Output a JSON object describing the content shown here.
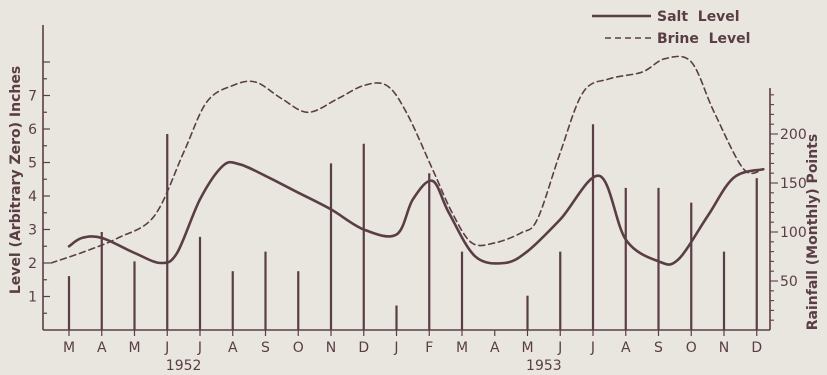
{
  "chart_data": {
    "type": "line",
    "legend": {
      "placement": "top-right",
      "entries": [
        {
          "label": "Salt  Level",
          "style": "solid"
        },
        {
          "label": "Brine  Level",
          "style": "dashed"
        }
      ]
    },
    "ylabel": "Level (Arbitrary Zero) Inches",
    "y2label": "Rainfall (Monthly) Points",
    "ylim": [
      0,
      8
    ],
    "y2lim": [
      0,
      240
    ],
    "yticks": [
      "1",
      "2",
      "3",
      "4",
      "5",
      "6",
      "7"
    ],
    "y2ticks": [
      "50",
      "100",
      "150",
      "200"
    ],
    "categories": [
      "M",
      "A",
      "M",
      "J",
      "J",
      "A",
      "S",
      "O",
      "N",
      "D",
      "J",
      "F",
      "M",
      "A",
      "M",
      "J",
      "J",
      "A",
      "S",
      "O",
      "N",
      "D"
    ],
    "year_labels": [
      {
        "label": "1952",
        "index": 3.5
      },
      {
        "label": "1953",
        "index": 14.5
      }
    ],
    "color": "#5a3e45",
    "series": [
      {
        "name": "Salt  Level",
        "style": "solid",
        "x": [
          0,
          0.4,
          1,
          2,
          2.8,
          3.3,
          4,
          4.7,
          5.2,
          6,
          7,
          8,
          9,
          10,
          10.5,
          11.1,
          11.6,
          12.4,
          13.3,
          14,
          15,
          16.2,
          17,
          18,
          18.6,
          19.5,
          20.3,
          21.2
        ],
        "values": [
          2.5,
          2.75,
          2.75,
          2.3,
          2.0,
          2.3,
          3.9,
          4.9,
          4.95,
          4.6,
          4.1,
          3.6,
          3.0,
          2.85,
          3.9,
          4.45,
          3.5,
          2.2,
          2.0,
          2.35,
          3.3,
          4.6,
          2.7,
          2.05,
          2.1,
          3.4,
          4.55,
          4.8
        ]
      },
      {
        "name": "Brine  Level",
        "style": "dashed",
        "x": [
          -0.55,
          0.5,
          1.5,
          2.6,
          3.5,
          4.2,
          5,
          5.7,
          6.5,
          7.3,
          8.2,
          9,
          9.7,
          10.3,
          11.1,
          11.7,
          12.3,
          13,
          13.8,
          14.3,
          15,
          15.7,
          16.5,
          17.5,
          18.2,
          19,
          19.7,
          20.6,
          21.2
        ],
        "values": [
          2.0,
          2.35,
          2.75,
          3.4,
          5.3,
          6.8,
          7.3,
          7.4,
          6.9,
          6.5,
          6.9,
          7.3,
          7.3,
          6.5,
          4.8,
          3.5,
          2.6,
          2.6,
          2.9,
          3.3,
          5.3,
          7.1,
          7.5,
          7.7,
          8.1,
          8.0,
          6.5,
          4.8,
          4.8
        ]
      },
      {
        "name": "",
        "style": "bars",
        "values": [
          55,
          100,
          70,
          200,
          95,
          60,
          80,
          60,
          170,
          190,
          25,
          160,
          80,
          0,
          35,
          80,
          210,
          145,
          145,
          130,
          80,
          155
        ]
      }
    ]
  }
}
